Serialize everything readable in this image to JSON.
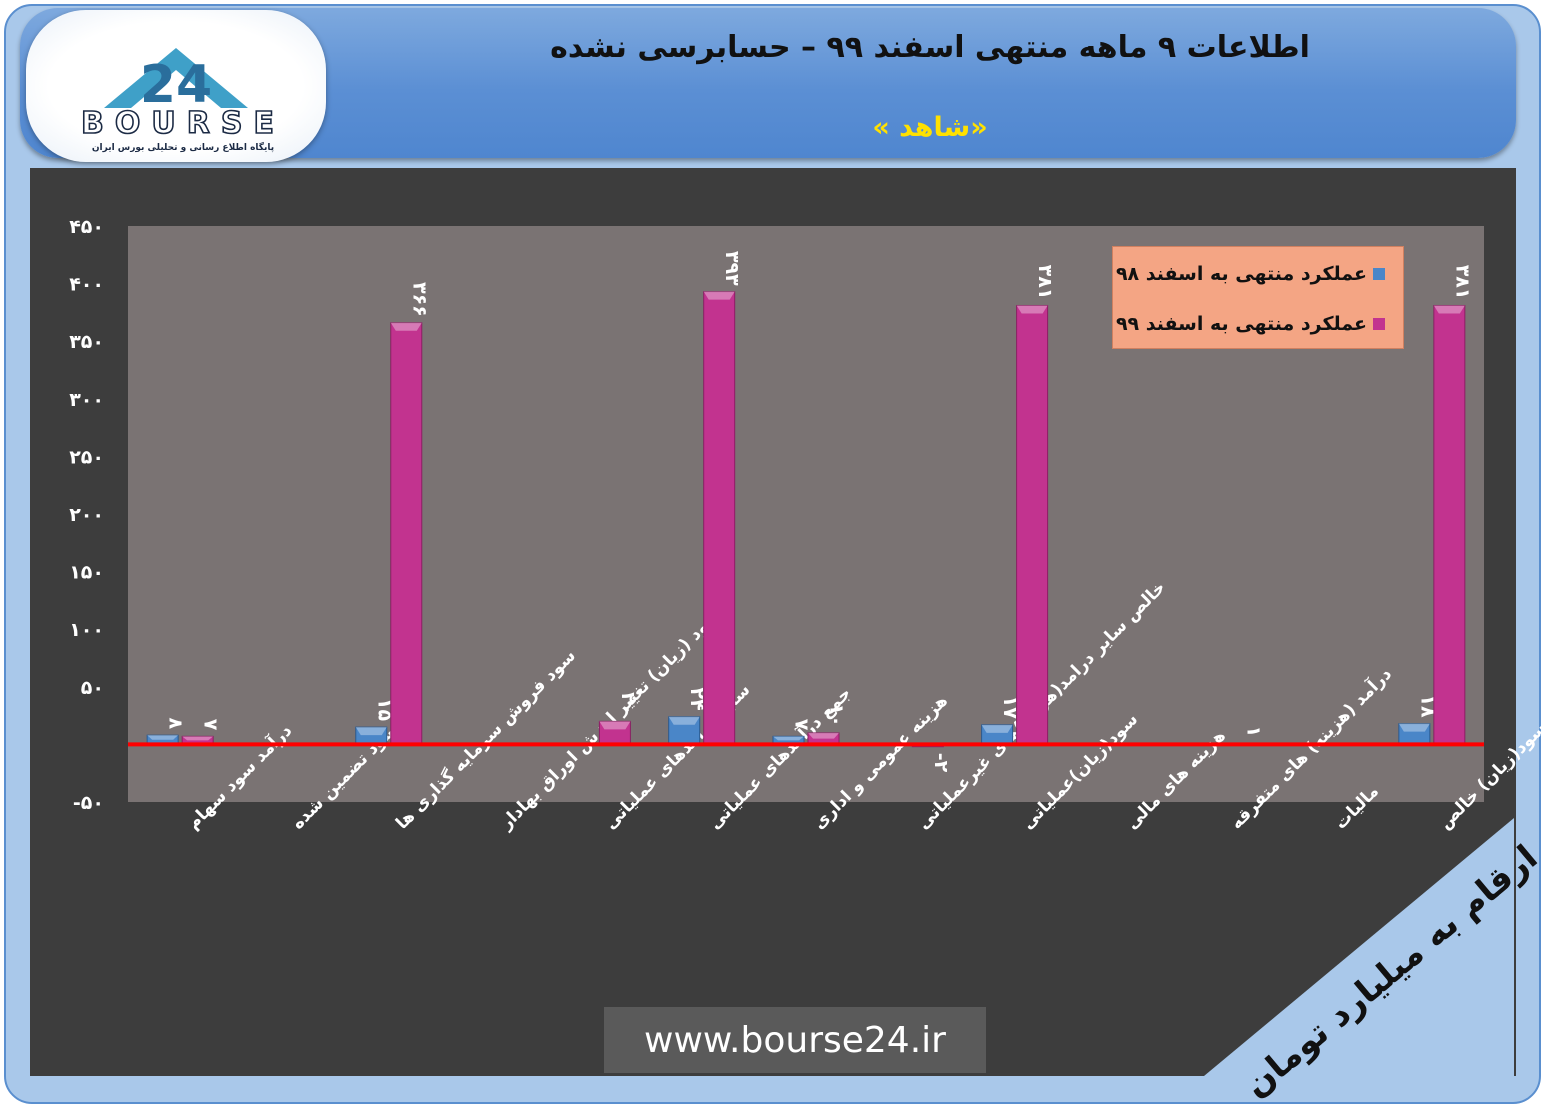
{
  "header": {
    "title": "اطلاعات ۹ ماهه منتهی اسفند ۹۹ – حسابرسی نشده",
    "subtitle": "«شاهد »"
  },
  "logo": {
    "word": "BOURSE",
    "tagline": "پایگاه اطلاع رسانی و تحلیلی بورس ایران"
  },
  "footer": {
    "url": "www.bourse24.ir",
    "units_note": "ارقام به میلیارد تومان"
  },
  "colors": {
    "series_98": "#4a86c8",
    "series_99": "#c2338f",
    "zero_line": "#ff0000",
    "plot_bg": "#7a7373"
  },
  "chart_data": {
    "type": "bar",
    "ylim": [
      -50,
      450
    ],
    "y_ticks": [
      -50,
      50,
      100,
      150,
      200,
      250,
      300,
      350,
      400,
      450
    ],
    "y_tick_labels": [
      "-۵۰",
      "۵۰",
      "۱۰۰",
      "۱۵۰",
      "۲۰۰",
      "۲۵۰",
      "۳۰۰",
      "۳۵۰",
      "۴۰۰",
      "۴۵۰"
    ],
    "categories": [
      "درآمد سود سهام",
      "سود تضمین شده",
      "سود فروش سرمایه گذاری ها",
      "سود (زیان) تغییر ارزش اوراق بهادار",
      "سایر درامدهای عملیاتی",
      "جمع درآمدهای عملیاتی",
      "هزینه عمومی و اداری",
      "خالص سایر درامد(هزینه)های غیرعملیاتی",
      "سود(زیان)عملیاتی",
      "هزینه های مالی",
      "درآمد (هزینه) های متفرقه",
      "مالیات",
      "سود(زیان) خالص"
    ],
    "series": [
      {
        "name": "عملکرد منتهی به اسفند ۹۸",
        "values": [
          8,
          null,
          15,
          null,
          null,
          24,
          7,
          null,
          17,
          null,
          null,
          null,
          18
        ],
        "labels": [
          "۸",
          "",
          "۱۵",
          "",
          "",
          "۲۴",
          "۷",
          "",
          "۱۷",
          "",
          "",
          "",
          "۱۸"
        ]
      },
      {
        "name": "عملکرد منتهی به اسفند ۹۹",
        "values": [
          7,
          null,
          366,
          null,
          20,
          393,
          10,
          -2,
          381,
          null,
          1,
          null,
          381
        ],
        "labels": [
          "۷",
          "",
          "۳۶۶",
          "",
          "۲۰",
          "۳۹۳",
          "۱۰",
          "-۲",
          "۳۸۱",
          "",
          "۱",
          "",
          "۳۸۱"
        ]
      }
    ],
    "legend_position": "top-right",
    "grid": false
  }
}
